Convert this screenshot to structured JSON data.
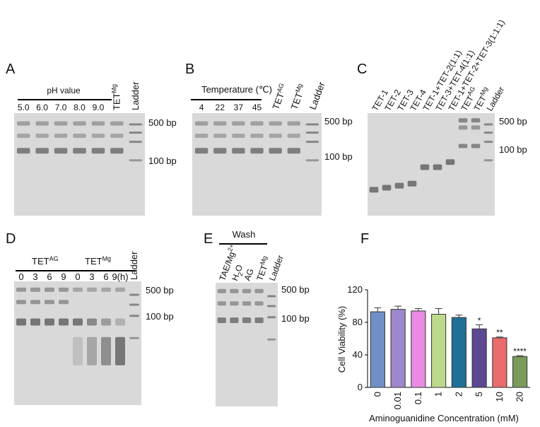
{
  "panels": [
    {
      "letter": "A",
      "header": "pH value",
      "lanes": [
        {
          "text": "5.0"
        },
        {
          "text": "6.0"
        },
        {
          "text": "7.0"
        },
        {
          "text": "8.0"
        },
        {
          "text": "9.0"
        },
        {
          "text": "TET",
          "sup": "Mg"
        },
        {
          "text": "Ladder"
        }
      ],
      "markers": [
        "500 bp",
        "100 bp"
      ]
    },
    {
      "letter": "B",
      "header": "Temperature (℃)",
      "lanes": [
        {
          "text": "4"
        },
        {
          "text": "22"
        },
        {
          "text": "37"
        },
        {
          "text": "45"
        },
        {
          "text": "TET",
          "sup": "AG"
        },
        {
          "text": "TET",
          "sup": "Mg"
        },
        {
          "text": "Ladder"
        }
      ],
      "markers": [
        "500 bp",
        "100 bp"
      ]
    },
    {
      "letter": "C",
      "lanes": [
        {
          "text": "TET-1"
        },
        {
          "text": "TET-2"
        },
        {
          "text": "TET-3"
        },
        {
          "text": "TET-4"
        },
        {
          "text": "TET-1+TET-2(1:1)"
        },
        {
          "text": "TET-3+TET-4(1:1)"
        },
        {
          "text": "TET-1+TET-2+TET-3(1:1:1)"
        },
        {
          "text": "TET",
          "sup": "AG"
        },
        {
          "text": "TET",
          "sup": "Mg"
        },
        {
          "text": "Ladder"
        }
      ],
      "markers": [
        "500 bp",
        "100 bp"
      ]
    },
    {
      "letter": "D",
      "groups": [
        {
          "text": "TET",
          "sup": "AG"
        },
        {
          "text": "TET",
          "sup": "Mg"
        }
      ],
      "lanes": [
        {
          "text": "0"
        },
        {
          "text": "3"
        },
        {
          "text": "6"
        },
        {
          "text": "9"
        },
        {
          "text": "0"
        },
        {
          "text": "3"
        },
        {
          "text": "6"
        },
        {
          "text": "9(h)"
        },
        {
          "text": "Ladder"
        }
      ],
      "markers": [
        "500 bp",
        "100 bp"
      ]
    },
    {
      "letter": "E",
      "header": "Wash",
      "lanes": [
        {
          "text": "TAE/Mg",
          "sup": "2+"
        },
        {
          "text": "H",
          "sub": "2",
          "tail": "O"
        },
        {
          "text": "AG"
        },
        {
          "text": "TET",
          "sup": "Mg"
        },
        {
          "text": "Ladder"
        }
      ],
      "markers": [
        "500 bp",
        "100 bp"
      ]
    },
    {
      "letter": "F"
    }
  ],
  "chart_data": {
    "type": "bar",
    "x_label": "Aminoguanidine Concentration (mM)",
    "y_label": "Cell Viability (%)",
    "categories": [
      "0",
      "0.01",
      "0.1",
      "1",
      "2",
      "5",
      "10",
      "20"
    ],
    "values": [
      93,
      96,
      94,
      90,
      86,
      72,
      61,
      38
    ],
    "errors": [
      5,
      4,
      3,
      7,
      3,
      5,
      1,
      1
    ],
    "colors": [
      "#6f8fc9",
      "#9d88cc",
      "#e98be2",
      "#bdd98c",
      "#1f6f98",
      "#5e4893",
      "#e96b6b",
      "#7b9b5b"
    ],
    "significance": [
      null,
      null,
      null,
      null,
      null,
      "*",
      "**",
      "****"
    ],
    "ylim": [
      0,
      120
    ],
    "yticks": [
      0,
      40,
      80,
      120
    ]
  }
}
